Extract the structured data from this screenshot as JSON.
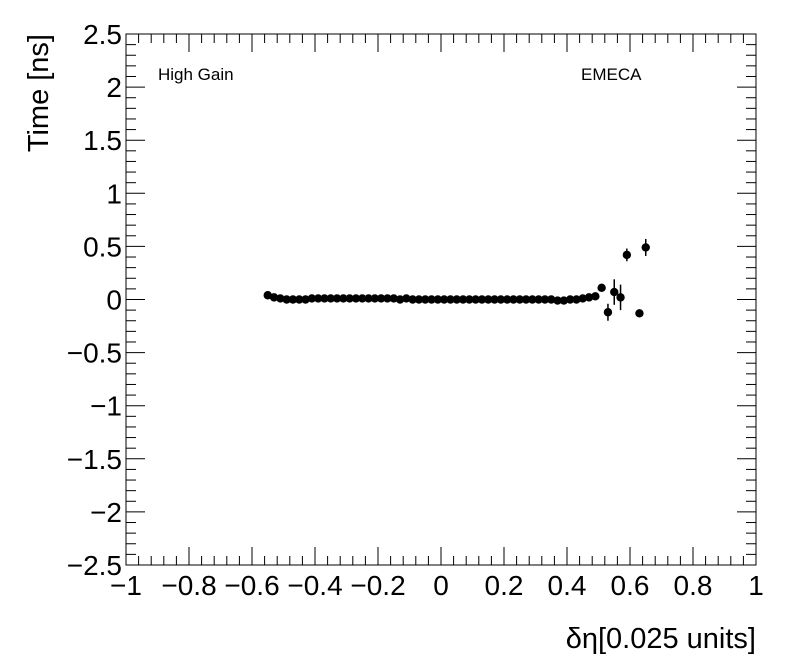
{
  "chart_data": {
    "type": "scatter",
    "xlabel": "δη[0.025 units]",
    "ylabel": "Time [ns]",
    "xlim": [
      -1,
      1
    ],
    "ylim": [
      -2.5,
      2.5
    ],
    "x_ticks": [
      -1,
      -0.8,
      -0.6,
      -0.4,
      -0.2,
      0,
      0.2,
      0.4,
      0.6,
      0.8,
      1
    ],
    "x_tick_labels": [
      "−1",
      "−0.8",
      "−0.6",
      "−0.4",
      "−0.2",
      "0",
      "0.2",
      "0.4",
      "0.6",
      "0.8",
      "1"
    ],
    "y_ticks": [
      2.5,
      2,
      1.5,
      1,
      0.5,
      0,
      -0.5,
      -1,
      -1.5,
      -2,
      -2.5
    ],
    "y_tick_labels": [
      "2.5",
      "2",
      "1.5",
      "1",
      "0.5",
      "0",
      "−0.5",
      "−1",
      "−1.5",
      "−2",
      "−2.5"
    ],
    "annotations": {
      "left": "High Gain",
      "right": "EMECA"
    },
    "marker_color": "#000000",
    "grid": false,
    "points": [
      {
        "x": -0.55,
        "y": 0.04,
        "err": 0.01
      },
      {
        "x": -0.53,
        "y": 0.02,
        "err": 0.01
      },
      {
        "x": -0.51,
        "y": 0.01,
        "err": 0.01
      },
      {
        "x": -0.49,
        "y": 0.0,
        "err": 0.01
      },
      {
        "x": -0.47,
        "y": 0.0,
        "err": 0.01
      },
      {
        "x": -0.45,
        "y": 0.0,
        "err": 0.01
      },
      {
        "x": -0.43,
        "y": 0.0,
        "err": 0.01
      },
      {
        "x": -0.41,
        "y": 0.01,
        "err": 0.01
      },
      {
        "x": -0.39,
        "y": 0.01,
        "err": 0.01
      },
      {
        "x": -0.37,
        "y": 0.01,
        "err": 0.01
      },
      {
        "x": -0.35,
        "y": 0.01,
        "err": 0.01
      },
      {
        "x": -0.33,
        "y": 0.01,
        "err": 0.01
      },
      {
        "x": -0.31,
        "y": 0.01,
        "err": 0.01
      },
      {
        "x": -0.29,
        "y": 0.01,
        "err": 0.01
      },
      {
        "x": -0.27,
        "y": 0.01,
        "err": 0.01
      },
      {
        "x": -0.25,
        "y": 0.01,
        "err": 0.01
      },
      {
        "x": -0.23,
        "y": 0.01,
        "err": 0.01
      },
      {
        "x": -0.21,
        "y": 0.01,
        "err": 0.01
      },
      {
        "x": -0.19,
        "y": 0.01,
        "err": 0.01
      },
      {
        "x": -0.17,
        "y": 0.01,
        "err": 0.01
      },
      {
        "x": -0.15,
        "y": 0.01,
        "err": 0.01
      },
      {
        "x": -0.13,
        "y": 0.0,
        "err": 0.01
      },
      {
        "x": -0.11,
        "y": 0.01,
        "err": 0.01
      },
      {
        "x": -0.09,
        "y": 0.0,
        "err": 0.01
      },
      {
        "x": -0.07,
        "y": 0.0,
        "err": 0.01
      },
      {
        "x": -0.05,
        "y": 0.0,
        "err": 0.01
      },
      {
        "x": -0.03,
        "y": 0.0,
        "err": 0.01
      },
      {
        "x": -0.01,
        "y": 0.0,
        "err": 0.01
      },
      {
        "x": 0.01,
        "y": 0.0,
        "err": 0.01
      },
      {
        "x": 0.03,
        "y": 0.0,
        "err": 0.01
      },
      {
        "x": 0.05,
        "y": 0.0,
        "err": 0.01
      },
      {
        "x": 0.07,
        "y": 0.0,
        "err": 0.01
      },
      {
        "x": 0.09,
        "y": 0.0,
        "err": 0.01
      },
      {
        "x": 0.11,
        "y": 0.0,
        "err": 0.01
      },
      {
        "x": 0.13,
        "y": 0.0,
        "err": 0.01
      },
      {
        "x": 0.15,
        "y": 0.0,
        "err": 0.01
      },
      {
        "x": 0.17,
        "y": 0.0,
        "err": 0.01
      },
      {
        "x": 0.19,
        "y": 0.0,
        "err": 0.01
      },
      {
        "x": 0.21,
        "y": 0.0,
        "err": 0.01
      },
      {
        "x": 0.23,
        "y": 0.0,
        "err": 0.01
      },
      {
        "x": 0.25,
        "y": 0.0,
        "err": 0.01
      },
      {
        "x": 0.27,
        "y": 0.0,
        "err": 0.01
      },
      {
        "x": 0.29,
        "y": 0.0,
        "err": 0.01
      },
      {
        "x": 0.31,
        "y": 0.0,
        "err": 0.01
      },
      {
        "x": 0.33,
        "y": 0.0,
        "err": 0.01
      },
      {
        "x": 0.35,
        "y": 0.0,
        "err": 0.01
      },
      {
        "x": 0.37,
        "y": -0.01,
        "err": 0.01
      },
      {
        "x": 0.39,
        "y": -0.01,
        "err": 0.01
      },
      {
        "x": 0.41,
        "y": 0.0,
        "err": 0.01
      },
      {
        "x": 0.43,
        "y": 0.0,
        "err": 0.01
      },
      {
        "x": 0.45,
        "y": 0.01,
        "err": 0.01
      },
      {
        "x": 0.47,
        "y": 0.02,
        "err": 0.01
      },
      {
        "x": 0.49,
        "y": 0.03,
        "err": 0.02
      },
      {
        "x": 0.51,
        "y": 0.11,
        "err": 0.03
      },
      {
        "x": 0.53,
        "y": -0.12,
        "err": 0.08
      },
      {
        "x": 0.55,
        "y": 0.07,
        "err": 0.12
      },
      {
        "x": 0.57,
        "y": 0.02,
        "err": 0.12
      },
      {
        "x": 0.59,
        "y": 0.42,
        "err": 0.06
      },
      {
        "x": 0.63,
        "y": -0.13,
        "err": 0.02
      },
      {
        "x": 0.65,
        "y": 0.49,
        "err": 0.08
      }
    ]
  }
}
